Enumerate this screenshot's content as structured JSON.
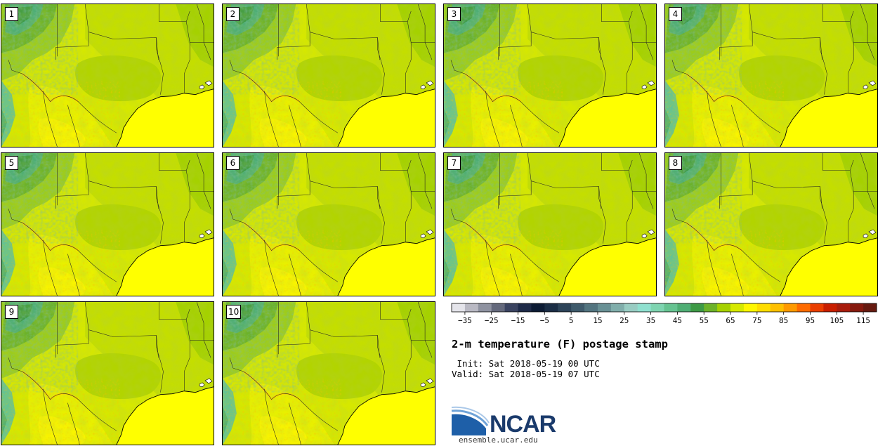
{
  "panels": [
    {
      "label": "1"
    },
    {
      "label": "2"
    },
    {
      "label": "3"
    },
    {
      "label": "4"
    },
    {
      "label": "5"
    },
    {
      "label": "6"
    },
    {
      "label": "7"
    },
    {
      "label": "8"
    },
    {
      "label": "9"
    },
    {
      "label": "10"
    }
  ],
  "colorbar": {
    "tick_labels": [
      "−35",
      "−25",
      "−15",
      "−5",
      "5",
      "15",
      "25",
      "35",
      "45",
      "55",
      "65",
      "75",
      "85",
      "95",
      "105",
      "115"
    ],
    "colors": [
      "#e4e4ea",
      "#b9b9c3",
      "#8e92a0",
      "#64697c",
      "#3a4360",
      "#1e2a48",
      "#0c1b34",
      "#1a2d45",
      "#2c4358",
      "#3e5a6b",
      "#52747f",
      "#689094",
      "#80aeab",
      "#98ccc2",
      "#8fe0cf",
      "#7ed4b0",
      "#66c391",
      "#4fae74",
      "#3d9a45",
      "#6cb229",
      "#a5d100",
      "#d6e900",
      "#fff700",
      "#ffdd00",
      "#ffc000",
      "#ff9a00",
      "#ff6b00",
      "#ea3e00",
      "#c91e00",
      "#a81c0c",
      "#861a0e",
      "#661a10"
    ]
  },
  "title": "2-m temperature (F) postage stamp",
  "init_time": " Init: Sat 2018-05-19 00 UTC",
  "valid_time": "Valid: Sat 2018-05-19 07 UTC",
  "logo": {
    "text": "NCAR",
    "color": "#1a3a6b",
    "arc_color": "#2a6cb0"
  },
  "website": "ensemble.ucar.edu"
}
